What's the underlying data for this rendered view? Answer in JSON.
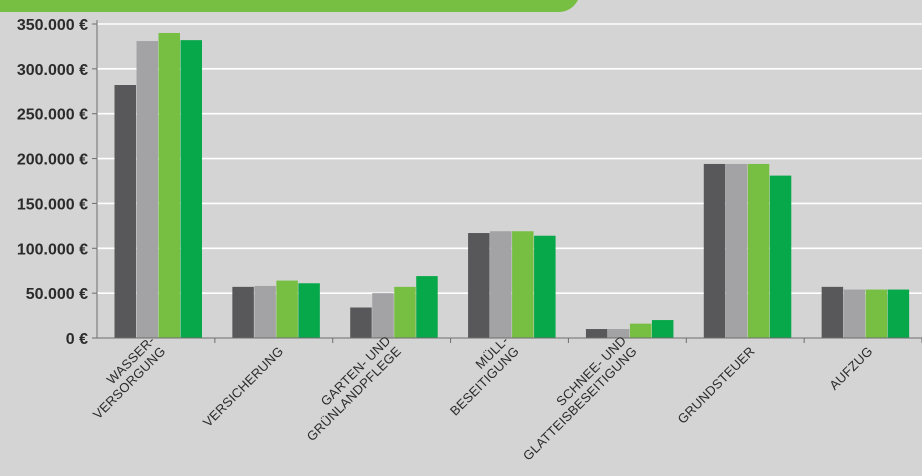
{
  "chart_data": {
    "type": "bar",
    "categories": [
      [
        "WASSER-",
        "VERSORGUNG"
      ],
      [
        "VERSICHERUNG"
      ],
      [
        "GARTEN- UND",
        "GRÜNLANDPFLEGE"
      ],
      [
        "MÜLL-",
        "BESEITIGUNG"
      ],
      [
        "SCHNEE- UND",
        "GLATTEISBESEITIGUNG"
      ],
      [
        "GRUNDSTEUER"
      ],
      [
        "AUFZUG"
      ]
    ],
    "series": [
      {
        "color": "#58585a",
        "values": [
          282000,
          57000,
          34000,
          117000,
          10000,
          194000,
          57000
        ]
      },
      {
        "color": "#a3a3a5",
        "values": [
          331000,
          58000,
          50000,
          119000,
          10000,
          194000,
          54000
        ]
      },
      {
        "color": "#77bf43",
        "values": [
          340000,
          64000,
          57000,
          119000,
          16000,
          194000,
          54000
        ]
      },
      {
        "color": "#07a84a",
        "values": [
          332000,
          61000,
          69000,
          114000,
          20000,
          181000,
          54000
        ]
      }
    ],
    "yticks": [
      "0 €",
      "50.000 €",
      "100.000 €",
      "150.000 €",
      "200.000 €",
      "250.000 €",
      "300.000 €",
      "350.000 €"
    ],
    "ylim": [
      0,
      350000
    ],
    "grid": true,
    "legend": "none"
  },
  "colors": {
    "background": "#d4d4d4",
    "gridline": "#ffffff",
    "axis": "#6e6e6e",
    "header_band": "#77bf43"
  }
}
